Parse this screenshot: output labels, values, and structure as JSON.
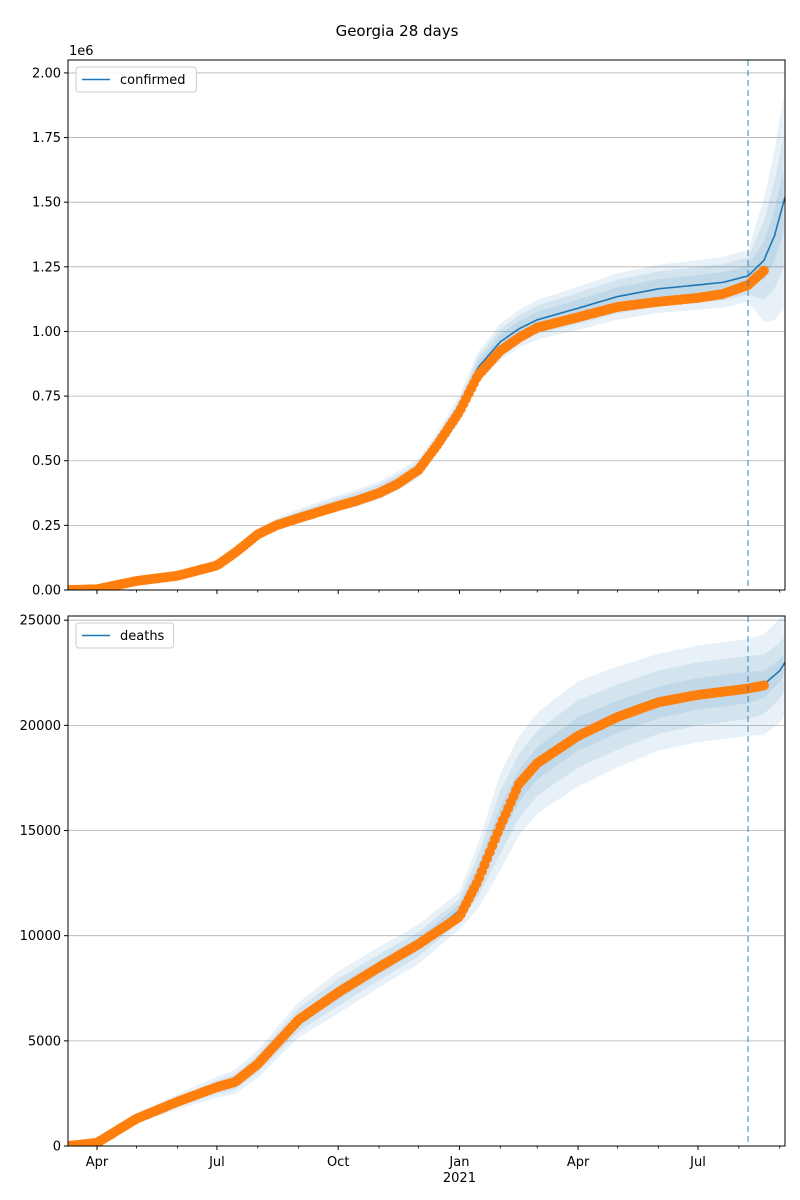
{
  "figure_title": "Georgia 28 days",
  "colors": {
    "model_line": "#1f77b4",
    "observed_points": "#ff7f0e",
    "band": "#1f77b4",
    "grid": "#b0b0b0",
    "vline": "#1f77b4"
  },
  "x_axis": {
    "start": "2020-03-10",
    "end": "2021-09-05",
    "tick_labels": [
      {
        "date": "2020-04-01",
        "label": "Apr"
      },
      {
        "date": "2020-07-01",
        "label": "Jul"
      },
      {
        "date": "2020-10-01",
        "label": "Oct"
      },
      {
        "date": "2021-01-01",
        "label": "Jan"
      },
      {
        "date": "2021-04-01",
        "label": "Apr"
      },
      {
        "date": "2021-07-01",
        "label": "Jul"
      }
    ],
    "minor_ticks": [
      "2020-05-01",
      "2020-06-01",
      "2020-08-01",
      "2020-09-01",
      "2020-11-01",
      "2020-12-01",
      "2021-02-01",
      "2021-03-01",
      "2021-05-01",
      "2021-06-01",
      "2021-08-01",
      "2021-09-01"
    ],
    "year_label": "2021",
    "forecast_start": "2021-08-08"
  },
  "chart_data": [
    {
      "type": "line",
      "legend": "confirmed",
      "legend_position": "upper-left",
      "grid": "y",
      "ylim": [
        0,
        2050000
      ],
      "yticks": [
        0,
        250000,
        500000,
        750000,
        1000000,
        1250000,
        1500000,
        1750000,
        2000000
      ],
      "ytick_labels": [
        "0.00",
        "0.25",
        "0.50",
        "0.75",
        "1.00",
        "1.25",
        "1.50",
        "1.75",
        "2.00"
      ],
      "offset_label": "1e6",
      "model": {
        "name": "confirmed",
        "points": [
          [
            "2020-03-10",
            0
          ],
          [
            "2020-04-01",
            3000
          ],
          [
            "2020-05-01",
            35000
          ],
          [
            "2020-06-01",
            55000
          ],
          [
            "2020-07-01",
            95000
          ],
          [
            "2020-07-15",
            145000
          ],
          [
            "2020-08-01",
            215000
          ],
          [
            "2020-08-15",
            255000
          ],
          [
            "2020-09-01",
            285000
          ],
          [
            "2020-09-15",
            310000
          ],
          [
            "2020-10-01",
            335000
          ],
          [
            "2020-10-15",
            355000
          ],
          [
            "2020-11-01",
            385000
          ],
          [
            "2020-11-15",
            420000
          ],
          [
            "2020-12-01",
            470000
          ],
          [
            "2020-12-15",
            570000
          ],
          [
            "2021-01-01",
            700000
          ],
          [
            "2021-01-15",
            860000
          ],
          [
            "2021-02-01",
            960000
          ],
          [
            "2021-02-15",
            1010000
          ],
          [
            "2021-03-01",
            1045000
          ],
          [
            "2021-04-01",
            1090000
          ],
          [
            "2021-05-01",
            1135000
          ],
          [
            "2021-06-01",
            1165000
          ],
          [
            "2021-07-01",
            1180000
          ],
          [
            "2021-07-20",
            1190000
          ],
          [
            "2021-08-08",
            1215000
          ],
          [
            "2021-08-20",
            1275000
          ],
          [
            "2021-08-28",
            1370000
          ],
          [
            "2021-09-05",
            1520000
          ]
        ]
      },
      "band_half_widths": [
        [
          [
            "2020-03-10",
            0
          ],
          [
            "2020-07-01",
            8000
          ],
          [
            "2020-09-01",
            28000
          ],
          [
            "2020-12-15",
            40000
          ],
          [
            "2021-02-01",
            70000
          ],
          [
            "2021-05-01",
            90000
          ],
          [
            "2021-08-08",
            100000
          ],
          [
            "2021-09-05",
            420000
          ]
        ],
        [
          [
            "2020-03-10",
            0
          ],
          [
            "2020-07-01",
            5000
          ],
          [
            "2020-09-01",
            18000
          ],
          [
            "2020-12-15",
            26000
          ],
          [
            "2021-02-01",
            50000
          ],
          [
            "2021-05-01",
            65000
          ],
          [
            "2021-08-08",
            72000
          ],
          [
            "2021-09-05",
            260000
          ]
        ],
        [
          [
            "2020-03-10",
            0
          ],
          [
            "2020-07-01",
            2500
          ],
          [
            "2020-09-01",
            9000
          ],
          [
            "2020-12-15",
            14000
          ],
          [
            "2021-02-01",
            28000
          ],
          [
            "2021-05-01",
            36000
          ],
          [
            "2021-08-08",
            40000
          ],
          [
            "2021-09-05",
            120000
          ]
        ]
      ],
      "observed": {
        "start": "2020-03-10",
        "end": "2021-08-20",
        "points": [
          [
            "2020-03-10",
            0
          ],
          [
            "2020-04-01",
            3000
          ],
          [
            "2020-05-01",
            35000
          ],
          [
            "2020-06-01",
            55000
          ],
          [
            "2020-07-01",
            95000
          ],
          [
            "2020-07-15",
            145000
          ],
          [
            "2020-08-01",
            215000
          ],
          [
            "2020-08-15",
            250000
          ],
          [
            "2020-09-01",
            278000
          ],
          [
            "2020-09-15",
            300000
          ],
          [
            "2020-10-01",
            325000
          ],
          [
            "2020-10-15",
            345000
          ],
          [
            "2020-11-01",
            375000
          ],
          [
            "2020-11-15",
            410000
          ],
          [
            "2020-12-01",
            465000
          ],
          [
            "2020-12-15",
            560000
          ],
          [
            "2021-01-01",
            690000
          ],
          [
            "2021-01-15",
            830000
          ],
          [
            "2021-02-01",
            925000
          ],
          [
            "2021-02-15",
            975000
          ],
          [
            "2021-03-01",
            1015000
          ],
          [
            "2021-04-01",
            1055000
          ],
          [
            "2021-05-01",
            1095000
          ],
          [
            "2021-06-01",
            1115000
          ],
          [
            "2021-07-01",
            1130000
          ],
          [
            "2021-07-20",
            1145000
          ],
          [
            "2021-08-08",
            1180000
          ],
          [
            "2021-08-20",
            1235000
          ]
        ]
      }
    },
    {
      "type": "line",
      "legend": "deaths",
      "legend_position": "upper-left",
      "grid": "y",
      "ylim": [
        0,
        25200
      ],
      "yticks": [
        0,
        5000,
        10000,
        15000,
        20000,
        25000
      ],
      "ytick_labels": [
        "0",
        "5000",
        "10000",
        "15000",
        "20000",
        "25000"
      ],
      "model": {
        "name": "deaths",
        "points": [
          [
            "2020-03-10",
            0
          ],
          [
            "2020-04-01",
            150
          ],
          [
            "2020-05-01",
            1300
          ],
          [
            "2020-06-01",
            2100
          ],
          [
            "2020-07-01",
            2800
          ],
          [
            "2020-07-15",
            3050
          ],
          [
            "2020-08-01",
            3900
          ],
          [
            "2020-09-01",
            6000
          ],
          [
            "2020-10-01",
            7300
          ],
          [
            "2020-11-01",
            8500
          ],
          [
            "2020-12-01",
            9600
          ],
          [
            "2021-01-01",
            11200
          ],
          [
            "2021-01-15",
            12800
          ],
          [
            "2021-02-01",
            15400
          ],
          [
            "2021-02-15",
            17100
          ],
          [
            "2021-03-01",
            18200
          ],
          [
            "2021-04-01",
            19600
          ],
          [
            "2021-05-01",
            20400
          ],
          [
            "2021-06-01",
            21100
          ],
          [
            "2021-07-01",
            21500
          ],
          [
            "2021-08-08",
            21800
          ],
          [
            "2021-08-20",
            21950
          ],
          [
            "2021-09-01",
            22600
          ],
          [
            "2021-09-05",
            23000
          ]
        ]
      },
      "band_half_widths": [
        [
          [
            "2020-03-10",
            0
          ],
          [
            "2020-07-01",
            500
          ],
          [
            "2020-10-01",
            1000
          ],
          [
            "2021-01-01",
            900
          ],
          [
            "2021-02-01",
            2300
          ],
          [
            "2021-04-01",
            2500
          ],
          [
            "2021-06-01",
            2300
          ],
          [
            "2021-08-08",
            2300
          ],
          [
            "2021-09-05",
            2500
          ]
        ],
        [
          [
            "2020-03-10",
            0
          ],
          [
            "2020-07-01",
            320
          ],
          [
            "2020-10-01",
            650
          ],
          [
            "2021-01-01",
            550
          ],
          [
            "2021-02-01",
            1500
          ],
          [
            "2021-04-01",
            1600
          ],
          [
            "2021-06-01",
            1500
          ],
          [
            "2021-08-08",
            1500
          ],
          [
            "2021-09-05",
            1300
          ]
        ],
        [
          [
            "2020-03-10",
            0
          ],
          [
            "2020-07-01",
            160
          ],
          [
            "2020-10-01",
            320
          ],
          [
            "2021-01-01",
            300
          ],
          [
            "2021-02-01",
            750
          ],
          [
            "2021-04-01",
            800
          ],
          [
            "2021-06-01",
            750
          ],
          [
            "2021-08-08",
            750
          ],
          [
            "2021-09-05",
            500
          ]
        ]
      ],
      "observed": {
        "start": "2020-03-10",
        "end": "2021-08-20",
        "points": [
          [
            "2020-03-10",
            0
          ],
          [
            "2020-04-01",
            150
          ],
          [
            "2020-05-01",
            1300
          ],
          [
            "2020-06-01",
            2100
          ],
          [
            "2020-07-01",
            2800
          ],
          [
            "2020-07-15",
            3050
          ],
          [
            "2020-08-01",
            3900
          ],
          [
            "2020-09-01",
            6000
          ],
          [
            "2020-10-01",
            7300
          ],
          [
            "2020-11-01",
            8500
          ],
          [
            "2020-12-01",
            9600
          ],
          [
            "2021-01-01",
            10900
          ],
          [
            "2021-01-15",
            12600
          ],
          [
            "2021-02-01",
            15200
          ],
          [
            "2021-02-15",
            17200
          ],
          [
            "2021-03-01",
            18200
          ],
          [
            "2021-04-01",
            19500
          ],
          [
            "2021-05-01",
            20400
          ],
          [
            "2021-06-01",
            21100
          ],
          [
            "2021-07-01",
            21450
          ],
          [
            "2021-08-08",
            21750
          ],
          [
            "2021-08-20",
            21900
          ]
        ]
      }
    }
  ]
}
